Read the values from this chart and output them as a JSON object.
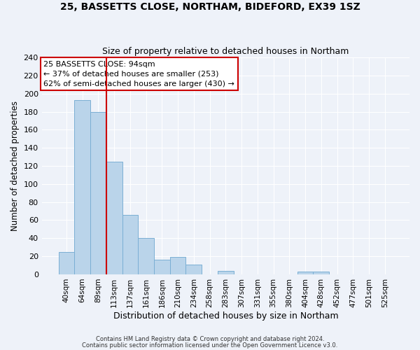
{
  "title1": "25, BASSETTS CLOSE, NORTHAM, BIDEFORD, EX39 1SZ",
  "title2": "Size of property relative to detached houses in Northam",
  "xlabel": "Distribution of detached houses by size in Northam",
  "ylabel": "Number of detached properties",
  "bin_labels": [
    "40sqm",
    "64sqm",
    "89sqm",
    "113sqm",
    "137sqm",
    "161sqm",
    "186sqm",
    "210sqm",
    "234sqm",
    "258sqm",
    "283sqm",
    "307sqm",
    "331sqm",
    "355sqm",
    "380sqm",
    "404sqm",
    "428sqm",
    "452sqm",
    "477sqm",
    "501sqm",
    "525sqm"
  ],
  "bar_heights": [
    25,
    193,
    180,
    125,
    66,
    40,
    16,
    19,
    11,
    0,
    4,
    0,
    0,
    0,
    0,
    3,
    3,
    0,
    0,
    0,
    0
  ],
  "bar_color": "#bad4ea",
  "bar_edge_color": "#7bafd4",
  "vline_color": "#cc0000",
  "annotation_title": "25 BASSETTS CLOSE: 94sqm",
  "annotation_line1": "← 37% of detached houses are smaller (253)",
  "annotation_line2": "62% of semi-detached houses are larger (430) →",
  "annotation_box_facecolor": "#ffffff",
  "annotation_box_edgecolor": "#cc0000",
  "ylim": [
    0,
    240
  ],
  "yticks": [
    0,
    20,
    40,
    60,
    80,
    100,
    120,
    140,
    160,
    180,
    200,
    220,
    240
  ],
  "footer1": "Contains HM Land Registry data © Crown copyright and database right 2024.",
  "footer2": "Contains public sector information licensed under the Open Government Licence v3.0.",
  "bg_color": "#eef2f9",
  "grid_color": "#ffffff"
}
